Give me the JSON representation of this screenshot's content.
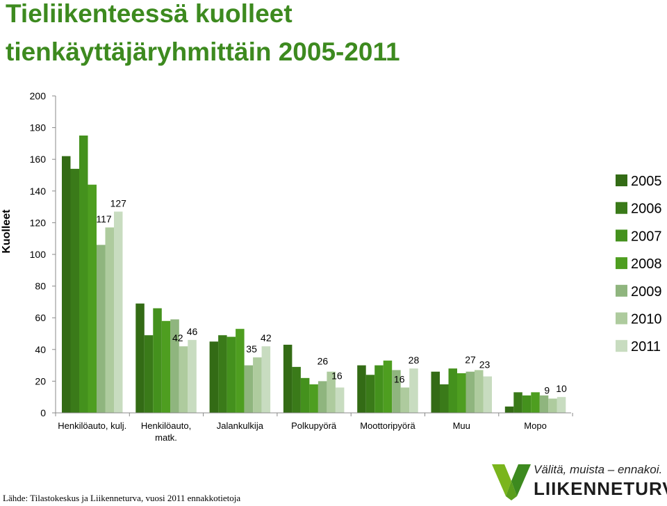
{
  "title": {
    "line1": "Tieliikenteessä kuolleet",
    "line2": "tienkäyttäjäryhmittäin 2005-2011"
  },
  "colors": {
    "title": "#3d8a1f",
    "series": [
      "#336b15",
      "#3a7a19",
      "#44911d",
      "#4e9e20",
      "#8fb57e",
      "#aecb9e",
      "#c8dcc0"
    ]
  },
  "chart_data": {
    "type": "bar",
    "title": "Tieliikenteessä kuolleet tienkäyttäjäryhmittäin 2005-2011",
    "ylabel": "Kuolleet",
    "xlabel": "",
    "ylim": [
      0,
      200
    ],
    "yticks": [
      "0",
      "20",
      "40",
      "60",
      "80",
      "100",
      "120",
      "140",
      "160",
      "180",
      "200"
    ],
    "grid": false,
    "legend_position": "right",
    "categories": [
      "Henkilöauto, kulj.",
      "Henkilöauto, matk.",
      "Jalankulkija",
      "Polkupyörä",
      "Moottoripyörä",
      "Muu",
      "Mopo"
    ],
    "series": [
      {
        "name": "2005",
        "values": [
          162,
          69,
          45,
          43,
          30,
          26,
          4
        ]
      },
      {
        "name": "2006",
        "values": [
          154,
          49,
          49,
          29,
          24,
          18,
          13
        ]
      },
      {
        "name": "2007",
        "values": [
          175,
          66,
          48,
          22,
          30,
          28,
          11
        ]
      },
      {
        "name": "2008",
        "values": [
          144,
          58,
          53,
          18,
          33,
          25,
          13
        ]
      },
      {
        "name": "2009",
        "values": [
          106,
          59,
          30,
          20,
          27,
          26,
          11
        ]
      },
      {
        "name": "2010",
        "values": [
          117,
          42,
          35,
          26,
          16,
          27,
          9
        ]
      },
      {
        "name": "2011",
        "values": [
          127,
          46,
          42,
          16,
          28,
          23,
          10
        ]
      }
    ],
    "data_labels": [
      {
        "category": 0,
        "series": 5,
        "text": "117"
      },
      {
        "category": 0,
        "series": 6,
        "text": "127"
      },
      {
        "category": 1,
        "series": 5,
        "text": "42"
      },
      {
        "category": 1,
        "series": 6,
        "text": "46"
      },
      {
        "category": 2,
        "series": 5,
        "text": "35"
      },
      {
        "category": 2,
        "series": 6,
        "text": "42"
      },
      {
        "category": 3,
        "series": 5,
        "text": "26"
      },
      {
        "category": 3,
        "series": 6,
        "text": "16"
      },
      {
        "category": 4,
        "series": 5,
        "text": "16"
      },
      {
        "category": 4,
        "series": 6,
        "text": "28"
      },
      {
        "category": 5,
        "series": 5,
        "text": "27"
      },
      {
        "category": 5,
        "series": 6,
        "text": "23"
      },
      {
        "category": 6,
        "series": 5,
        "text": "9"
      },
      {
        "category": 6,
        "series": 6,
        "text": "10"
      }
    ]
  },
  "footer": {
    "source": "Lähde: Tilastokeskus ja Liikenneturva, vuosi 2011 ennakkotietoja",
    "slogan": "Välitä, muista – ennakoi.",
    "brand": "LIIKENNETURVA",
    "logo_icon": "liikenneturva-check-logo"
  }
}
